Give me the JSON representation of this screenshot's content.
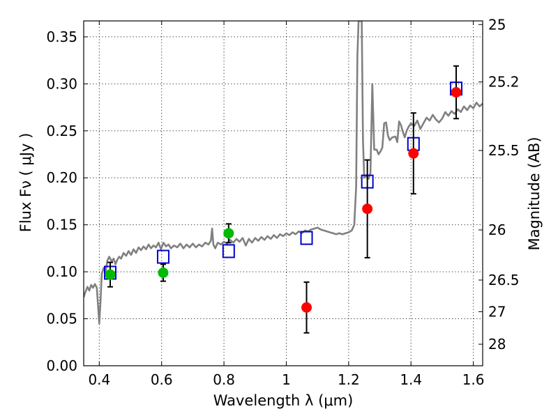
{
  "chart_data": {
    "type": "scatter",
    "xlabel": "Wavelength  λ (μm)",
    "ylabel": "Flux  Fν  ( μJy )",
    "ylabel_right": "Magnitude (AB)",
    "xlim": [
      0.35,
      1.63
    ],
    "ylim": [
      0,
      0.367
    ],
    "grid": true,
    "x_ticks": [
      0.4,
      0.6,
      0.8,
      1.0,
      1.2,
      1.4,
      1.6
    ],
    "x_tick_labels": [
      "0.4",
      "0.6",
      "0.8",
      "1",
      "1.2",
      "1.4",
      "1.6"
    ],
    "y_ticks": [
      0,
      0.05,
      0.1,
      0.15,
      0.2,
      0.25,
      0.3,
      0.35
    ],
    "y_tick_labels": [
      "0.00",
      "0.05",
      "0.10",
      "0.15",
      "0.20",
      "0.25",
      "0.30",
      "0.35"
    ],
    "right_ticks": [
      {
        "label": "25",
        "mag": 25.0
      },
      {
        "label": "25.2",
        "mag": 25.2
      },
      {
        "label": "25.5",
        "mag": 25.5
      },
      {
        "label": "26",
        "mag": 26.0
      },
      {
        "label": "26.5",
        "mag": 26.5
      },
      {
        "label": "27",
        "mag": 27.0
      },
      {
        "label": "28",
        "mag": 28.0
      }
    ],
    "series": [
      {
        "kind": "line",
        "color": "#808080",
        "points": [
          [
            0.35,
            0.073
          ],
          [
            0.356,
            0.079
          ],
          [
            0.362,
            0.084
          ],
          [
            0.368,
            0.08
          ],
          [
            0.374,
            0.086
          ],
          [
            0.38,
            0.083
          ],
          [
            0.386,
            0.087
          ],
          [
            0.392,
            0.083
          ],
          [
            0.396,
            0.064
          ],
          [
            0.4,
            0.045
          ],
          [
            0.404,
            0.068
          ],
          [
            0.408,
            0.098
          ],
          [
            0.414,
            0.104
          ],
          [
            0.42,
            0.1
          ],
          [
            0.426,
            0.112
          ],
          [
            0.432,
            0.116
          ],
          [
            0.44,
            0.111
          ],
          [
            0.446,
            0.114
          ],
          [
            0.452,
            0.108
          ],
          [
            0.458,
            0.113
          ],
          [
            0.464,
            0.116
          ],
          [
            0.47,
            0.114
          ],
          [
            0.478,
            0.12
          ],
          [
            0.486,
            0.117
          ],
          [
            0.494,
            0.122
          ],
          [
            0.502,
            0.118
          ],
          [
            0.51,
            0.124
          ],
          [
            0.518,
            0.12
          ],
          [
            0.526,
            0.126
          ],
          [
            0.534,
            0.123
          ],
          [
            0.542,
            0.127
          ],
          [
            0.55,
            0.124
          ],
          [
            0.558,
            0.129
          ],
          [
            0.566,
            0.125
          ],
          [
            0.574,
            0.128
          ],
          [
            0.582,
            0.126
          ],
          [
            0.59,
            0.131
          ],
          [
            0.598,
            0.124
          ],
          [
            0.606,
            0.131
          ],
          [
            0.614,
            0.127
          ],
          [
            0.622,
            0.129
          ],
          [
            0.63,
            0.125
          ],
          [
            0.64,
            0.128
          ],
          [
            0.65,
            0.126
          ],
          [
            0.66,
            0.13
          ],
          [
            0.67,
            0.125
          ],
          [
            0.68,
            0.129
          ],
          [
            0.69,
            0.126
          ],
          [
            0.7,
            0.13
          ],
          [
            0.71,
            0.126
          ],
          [
            0.72,
            0.129
          ],
          [
            0.73,
            0.127
          ],
          [
            0.74,
            0.131
          ],
          [
            0.75,
            0.129
          ],
          [
            0.758,
            0.133
          ],
          [
            0.762,
            0.146
          ],
          [
            0.766,
            0.129
          ],
          [
            0.772,
            0.125
          ],
          [
            0.78,
            0.131
          ],
          [
            0.79,
            0.129
          ],
          [
            0.8,
            0.132
          ],
          [
            0.81,
            0.13
          ],
          [
            0.82,
            0.134
          ],
          [
            0.83,
            0.131
          ],
          [
            0.84,
            0.135
          ],
          [
            0.85,
            0.132
          ],
          [
            0.86,
            0.136
          ],
          [
            0.87,
            0.128
          ],
          [
            0.88,
            0.135
          ],
          [
            0.89,
            0.131
          ],
          [
            0.9,
            0.136
          ],
          [
            0.91,
            0.133
          ],
          [
            0.92,
            0.137
          ],
          [
            0.93,
            0.134
          ],
          [
            0.94,
            0.138
          ],
          [
            0.95,
            0.135
          ],
          [
            0.96,
            0.139
          ],
          [
            0.97,
            0.136
          ],
          [
            0.98,
            0.14
          ],
          [
            0.99,
            0.138
          ],
          [
            1.0,
            0.141
          ],
          [
            1.01,
            0.139
          ],
          [
            1.02,
            0.142
          ],
          [
            1.03,
            0.14
          ],
          [
            1.04,
            0.143
          ],
          [
            1.05,
            0.141
          ],
          [
            1.06,
            0.144
          ],
          [
            1.07,
            0.143
          ],
          [
            1.08,
            0.145
          ],
          [
            1.09,
            0.146
          ],
          [
            1.1,
            0.147
          ],
          [
            1.11,
            0.145
          ],
          [
            1.12,
            0.144
          ],
          [
            1.13,
            0.143
          ],
          [
            1.14,
            0.142
          ],
          [
            1.15,
            0.141
          ],
          [
            1.16,
            0.14
          ],
          [
            1.17,
            0.141
          ],
          [
            1.18,
            0.14
          ],
          [
            1.19,
            0.141
          ],
          [
            1.2,
            0.142
          ],
          [
            1.21,
            0.144
          ],
          [
            1.218,
            0.15
          ],
          [
            1.224,
            0.19
          ],
          [
            1.228,
            0.33
          ],
          [
            1.232,
            0.367
          ],
          [
            1.242,
            0.367
          ],
          [
            1.246,
            0.24
          ],
          [
            1.25,
            0.2
          ],
          [
            1.258,
            0.203
          ],
          [
            1.264,
            0.199
          ],
          [
            1.27,
            0.205
          ],
          [
            1.276,
            0.3
          ],
          [
            1.282,
            0.23
          ],
          [
            1.29,
            0.23
          ],
          [
            1.296,
            0.225
          ],
          [
            1.302,
            0.228
          ],
          [
            1.308,
            0.232
          ],
          [
            1.314,
            0.258
          ],
          [
            1.32,
            0.259
          ],
          [
            1.326,
            0.245
          ],
          [
            1.332,
            0.24
          ],
          [
            1.34,
            0.243
          ],
          [
            1.35,
            0.244
          ],
          [
            1.356,
            0.238
          ],
          [
            1.362,
            0.26
          ],
          [
            1.368,
            0.256
          ],
          [
            1.374,
            0.249
          ],
          [
            1.38,
            0.243
          ],
          [
            1.386,
            0.25
          ],
          [
            1.392,
            0.254
          ],
          [
            1.4,
            0.258
          ],
          [
            1.41,
            0.255
          ],
          [
            1.42,
            0.261
          ],
          [
            1.43,
            0.252
          ],
          [
            1.44,
            0.258
          ],
          [
            1.45,
            0.264
          ],
          [
            1.46,
            0.261
          ],
          [
            1.47,
            0.267
          ],
          [
            1.48,
            0.262
          ],
          [
            1.49,
            0.259
          ],
          [
            1.5,
            0.263
          ],
          [
            1.51,
            0.27
          ],
          [
            1.52,
            0.266
          ],
          [
            1.53,
            0.271
          ],
          [
            1.54,
            0.268
          ],
          [
            1.55,
            0.273
          ],
          [
            1.56,
            0.27
          ],
          [
            1.57,
            0.276
          ],
          [
            1.58,
            0.272
          ],
          [
            1.59,
            0.277
          ],
          [
            1.6,
            0.274
          ],
          [
            1.61,
            0.28
          ],
          [
            1.62,
            0.276
          ],
          [
            1.63,
            0.279
          ]
        ]
      },
      {
        "kind": "open_square",
        "color": "#0000cc",
        "points": [
          [
            0.435,
            0.099
          ],
          [
            0.605,
            0.116
          ],
          [
            0.815,
            0.122
          ],
          [
            1.065,
            0.136
          ],
          [
            1.26,
            0.196
          ],
          [
            1.408,
            0.236
          ],
          [
            1.545,
            0.295
          ]
        ]
      },
      {
        "kind": "dot",
        "color": "#00bb00",
        "points": [
          [
            0.435,
            0.097
          ],
          [
            0.605,
            0.099
          ],
          [
            0.815,
            0.141
          ]
        ],
        "errors": [
          0.013,
          0.009,
          0.01
        ]
      },
      {
        "kind": "dot",
        "color": "#ff0000",
        "points": [
          [
            1.065,
            0.062
          ],
          [
            1.26,
            0.167
          ],
          [
            1.408,
            0.226
          ],
          [
            1.545,
            0.291
          ]
        ],
        "errors": [
          0.027,
          0.052,
          0.043,
          0.028
        ]
      }
    ]
  }
}
